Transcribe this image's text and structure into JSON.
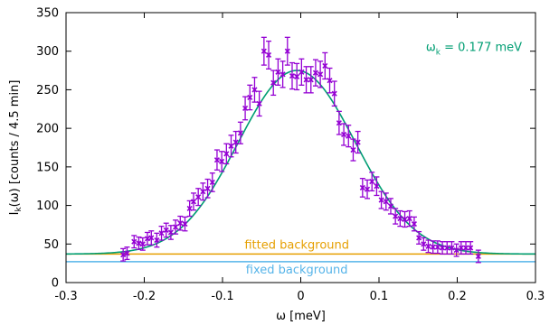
{
  "chart_data": {
    "type": "scatter",
    "xlabel": "ω [meV]",
    "ylabel": "I_k(ω) [counts / 4.5 min]",
    "xlim": [
      -0.3,
      0.3
    ],
    "ylim": [
      0,
      350
    ],
    "x_ticks": [
      -0.3,
      -0.2,
      -0.1,
      0,
      0.1,
      0.2,
      0.3
    ],
    "y_ticks": [
      0,
      50,
      100,
      150,
      200,
      250,
      300,
      350
    ],
    "annotation": {
      "main": "ω",
      "sub": "k",
      "rest": " = 0.177 meV",
      "x": 0.16,
      "y": 305
    },
    "colors": {
      "data": "#9400d3",
      "fit": "#009e73",
      "fitted_bg": "#e69f00",
      "fixed_bg": "#56b4e9"
    },
    "series": [
      {
        "kind": "errorbars",
        "x": [
          -0.227,
          -0.222,
          -0.213,
          -0.207,
          -0.202,
          -0.196,
          -0.191,
          -0.184,
          -0.178,
          -0.172,
          -0.166,
          -0.16,
          -0.154,
          -0.148,
          -0.142,
          -0.137,
          -0.131,
          -0.125,
          -0.119,
          -0.113,
          -0.107,
          -0.101,
          -0.095,
          -0.089,
          -0.083,
          -0.077,
          -0.071,
          -0.065,
          -0.059,
          -0.053,
          -0.047,
          -0.041,
          -0.035,
          -0.029,
          -0.023,
          -0.017,
          -0.011,
          -0.005,
          0.001,
          0.007,
          0.013,
          0.019,
          0.025,
          0.031,
          0.037,
          0.043,
          0.049,
          0.055,
          0.061,
          0.067,
          0.073,
          0.079,
          0.085,
          0.091,
          0.097,
          0.103,
          0.109,
          0.115,
          0.121,
          0.127,
          0.133,
          0.139,
          0.145,
          0.151,
          0.157,
          0.163,
          0.169,
          0.175,
          0.181,
          0.187,
          0.193,
          0.199,
          0.205,
          0.211,
          0.217,
          0.227
        ],
        "y": [
          36,
          38,
          53,
          51,
          50,
          57,
          58,
          55,
          64,
          68,
          65,
          72,
          77,
          76,
          96,
          105,
          111,
          118,
          122,
          130,
          159,
          157,
          167,
          177,
          182,
          194,
          226,
          240,
          250,
          232,
          300,
          295,
          259,
          273,
          270,
          300,
          268,
          267,
          273,
          263,
          263,
          272,
          270,
          281,
          262,
          245,
          207,
          192,
          190,
          172,
          182,
          123,
          121,
          131,
          125,
          107,
          105,
          99,
          86,
          83,
          82,
          83,
          76,
          58,
          50,
          47,
          46,
          46,
          45,
          45,
          45,
          42,
          45,
          45,
          45,
          34
        ],
        "err": [
          8,
          8,
          8,
          8,
          8,
          8,
          9,
          9,
          9,
          9,
          9,
          9,
          9,
          9,
          10,
          11,
          11,
          11,
          12,
          12,
          13,
          13,
          13,
          14,
          14,
          14,
          15,
          16,
          16,
          16,
          18,
          18,
          16,
          17,
          17,
          18,
          17,
          17,
          17,
          17,
          17,
          17,
          17,
          17,
          16,
          16,
          15,
          14,
          14,
          14,
          14,
          12,
          12,
          12,
          12,
          11,
          11,
          10,
          10,
          10,
          10,
          10,
          9,
          8,
          8,
          8,
          8,
          8,
          8,
          8,
          8,
          8,
          8,
          8,
          8,
          8
        ]
      },
      {
        "kind": "fit",
        "model": "gaussian",
        "amplitude": 238,
        "center": -0.005,
        "sigma": 0.075,
        "offset": 37
      },
      {
        "kind": "hline",
        "name": "fitted background",
        "y": 37
      },
      {
        "kind": "hline",
        "name": "fixed background",
        "y": 27
      }
    ]
  }
}
